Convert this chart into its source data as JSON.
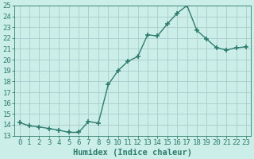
{
  "xlabel": "Humidex (Indice chaleur)",
  "ylabel": "",
  "x": [
    0,
    1,
    2,
    3,
    4,
    5,
    6,
    7,
    8,
    9,
    10,
    11,
    12,
    13,
    14,
    15,
    16,
    17,
    18,
    19,
    20,
    21,
    22,
    23
  ],
  "y": [
    14.2,
    13.9,
    13.8,
    13.65,
    13.5,
    13.3,
    13.3,
    14.3,
    14.15,
    17.7,
    19.0,
    19.85,
    20.3,
    22.3,
    22.2,
    23.3,
    24.3,
    25.0,
    22.7,
    21.9,
    21.1,
    20.9,
    21.1,
    21.2
  ],
  "line_color": "#2d7d6e",
  "marker": "+",
  "marker_size": 5,
  "bg_color": "#cceee8",
  "grid_color": "#aacccc",
  "ylim": [
    13,
    25
  ],
  "yticks": [
    13,
    14,
    15,
    16,
    17,
    18,
    19,
    20,
    21,
    22,
    23,
    24,
    25
  ],
  "xlim": [
    -0.5,
    23.5
  ],
  "xticks": [
    0,
    1,
    2,
    3,
    4,
    5,
    6,
    7,
    8,
    9,
    10,
    11,
    12,
    13,
    14,
    15,
    16,
    17,
    18,
    19,
    20,
    21,
    22,
    23
  ],
  "tick_fontsize": 6.5,
  "xlabel_fontsize": 7.5,
  "line_width": 1.0
}
